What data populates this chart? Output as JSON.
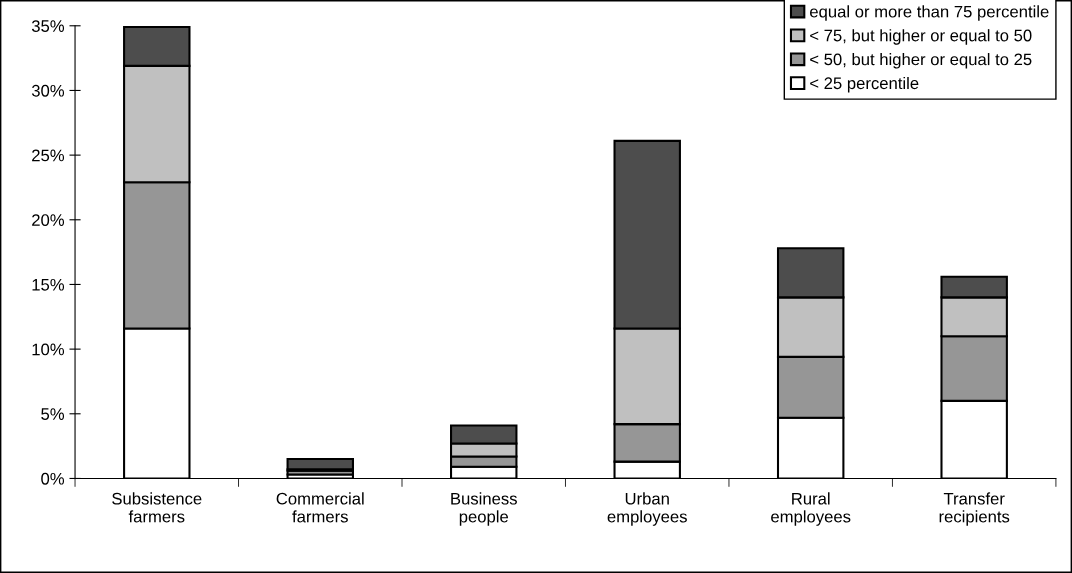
{
  "chart_data": {
    "type": "bar",
    "stacked": true,
    "categories": [
      "Subsistence\nfarmers",
      "Commercial\nfarmers",
      "Business\npeople",
      "Urban\nemployees",
      "Rural\nemployees",
      "Transfer\nrecipients"
    ],
    "series": [
      {
        "name": "< 25 percentile",
        "color": "#ffffff",
        "values": [
          11.6,
          0.3,
          0.9,
          1.3,
          4.7,
          6.0
        ]
      },
      {
        "name": "< 50, but higher or equal to 25",
        "color": "#969696",
        "values": [
          11.3,
          0.3,
          0.8,
          2.9,
          4.7,
          5.0
        ]
      },
      {
        "name": "< 75, but higher or equal to 50",
        "color": "#c0c0c0",
        "values": [
          9.0,
          0.1,
          1.0,
          7.4,
          4.6,
          3.0
        ]
      },
      {
        "name": "equal or more than 75 percentile",
        "color": "#4d4d4d",
        "values": [
          3.0,
          0.8,
          1.4,
          14.5,
          3.8,
          1.6
        ]
      }
    ],
    "ylim": [
      0,
      35
    ],
    "yticks": [
      {
        "value": 0,
        "label": "0%"
      },
      {
        "value": 5,
        "label": "5%"
      },
      {
        "value": 10,
        "label": "10%"
      },
      {
        "value": 15,
        "label": "15%"
      },
      {
        "value": 20,
        "label": "20%"
      },
      {
        "value": 25,
        "label": "25%"
      },
      {
        "value": 30,
        "label": "30%"
      },
      {
        "value": 35,
        "label": "35%"
      }
    ],
    "grid": false,
    "legend": "top right"
  }
}
